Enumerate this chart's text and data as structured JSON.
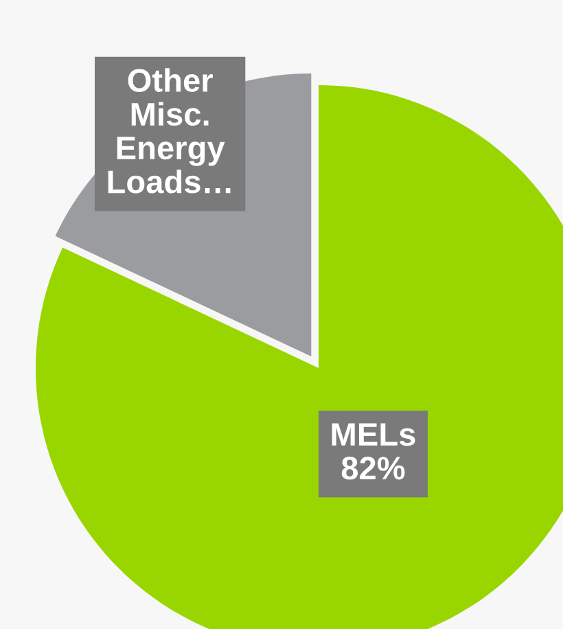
{
  "chart_data": {
    "type": "pie",
    "categories": [
      "Other Misc. Energy Loads…",
      "MELs"
    ],
    "values": [
      18,
      82
    ],
    "value_labels": [
      null,
      "82%"
    ],
    "colors": [
      "#9a9ca0",
      "#99d600"
    ],
    "legend": false
  }
}
